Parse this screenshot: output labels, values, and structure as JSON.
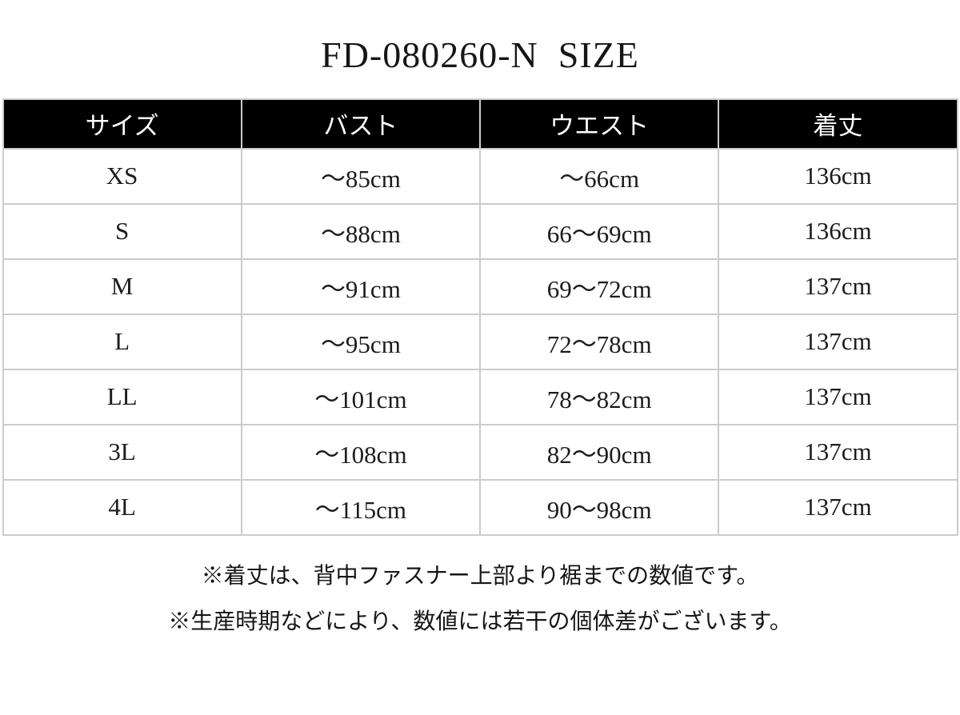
{
  "page": {
    "title": "FD-080260-N  SIZE"
  },
  "chart_data": {
    "type": "table",
    "title": "FD-080260-N SIZE",
    "columns": [
      "サイズ",
      "バスト",
      "ウエスト",
      "着丈"
    ],
    "rows": [
      [
        "XS",
        "～85cm",
        "～66cm",
        "136cm"
      ],
      [
        "S",
        "～88cm",
        "66～69cm",
        "136cm"
      ],
      [
        "M",
        "～91cm",
        "69～72cm",
        "137cm"
      ],
      [
        "L",
        "～95cm",
        "72～78cm",
        "137cm"
      ],
      [
        "LL",
        "～101cm",
        "78～82cm",
        "137cm"
      ],
      [
        "3L",
        "～108cm",
        "82～90cm",
        "137cm"
      ],
      [
        "4L",
        "～115cm",
        "90～98cm",
        "137cm"
      ]
    ],
    "notes": [
      "※着丈は、背中ファスナー上部より裾までの数値です。",
      "※生産時期などにより、数値には若干の個体差がございます。"
    ],
    "layout": {
      "header_bg": "#000000",
      "header_text_color": "#ffffff",
      "border_color": "#cccccc",
      "body_text_color": "#1c1c1c",
      "grid": "on"
    }
  }
}
